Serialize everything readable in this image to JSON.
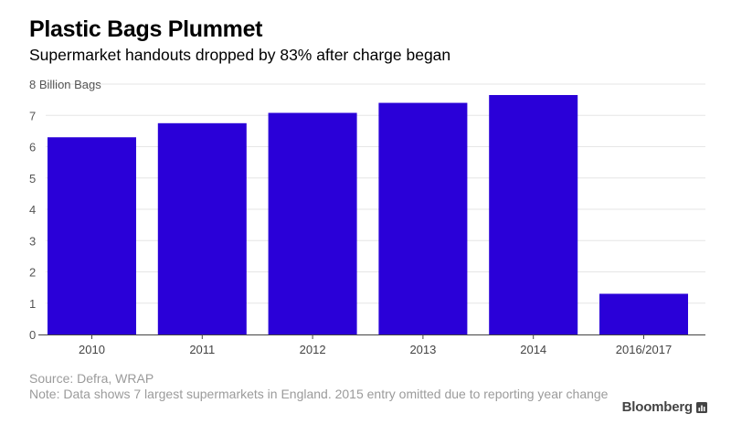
{
  "header": {
    "title": "Plastic Bags Plummet",
    "subtitle": "Supermarket handouts dropped by 83% after charge began"
  },
  "chart_data": {
    "type": "bar",
    "categories": [
      "2010",
      "2011",
      "2012",
      "2013",
      "2014",
      "2016/2017"
    ],
    "values": [
      6.3,
      6.75,
      7.08,
      7.4,
      7.65,
      1.3
    ],
    "ylim": [
      0,
      8
    ],
    "yticks": [
      0,
      1,
      2,
      3,
      4,
      5,
      6,
      7,
      8
    ],
    "ytick_labels": [
      "0",
      "1",
      "2",
      "3",
      "4",
      "5",
      "6",
      "7",
      "8 Billion Bags"
    ],
    "ylabel": "Billion Bags",
    "xlabel": "",
    "grid": true,
    "bar_color": "#2a00d8",
    "grid_color": "#e6e6e6",
    "axis_color": "#444444"
  },
  "footer": {
    "source": "Source: Defra, WRAP",
    "note": "Note: Data shows 7 largest supermarkets in England. 2015 entry omitted due to reporting year change"
  },
  "brand": {
    "name": "Bloomberg",
    "icon": "bar-chart-icon"
  }
}
